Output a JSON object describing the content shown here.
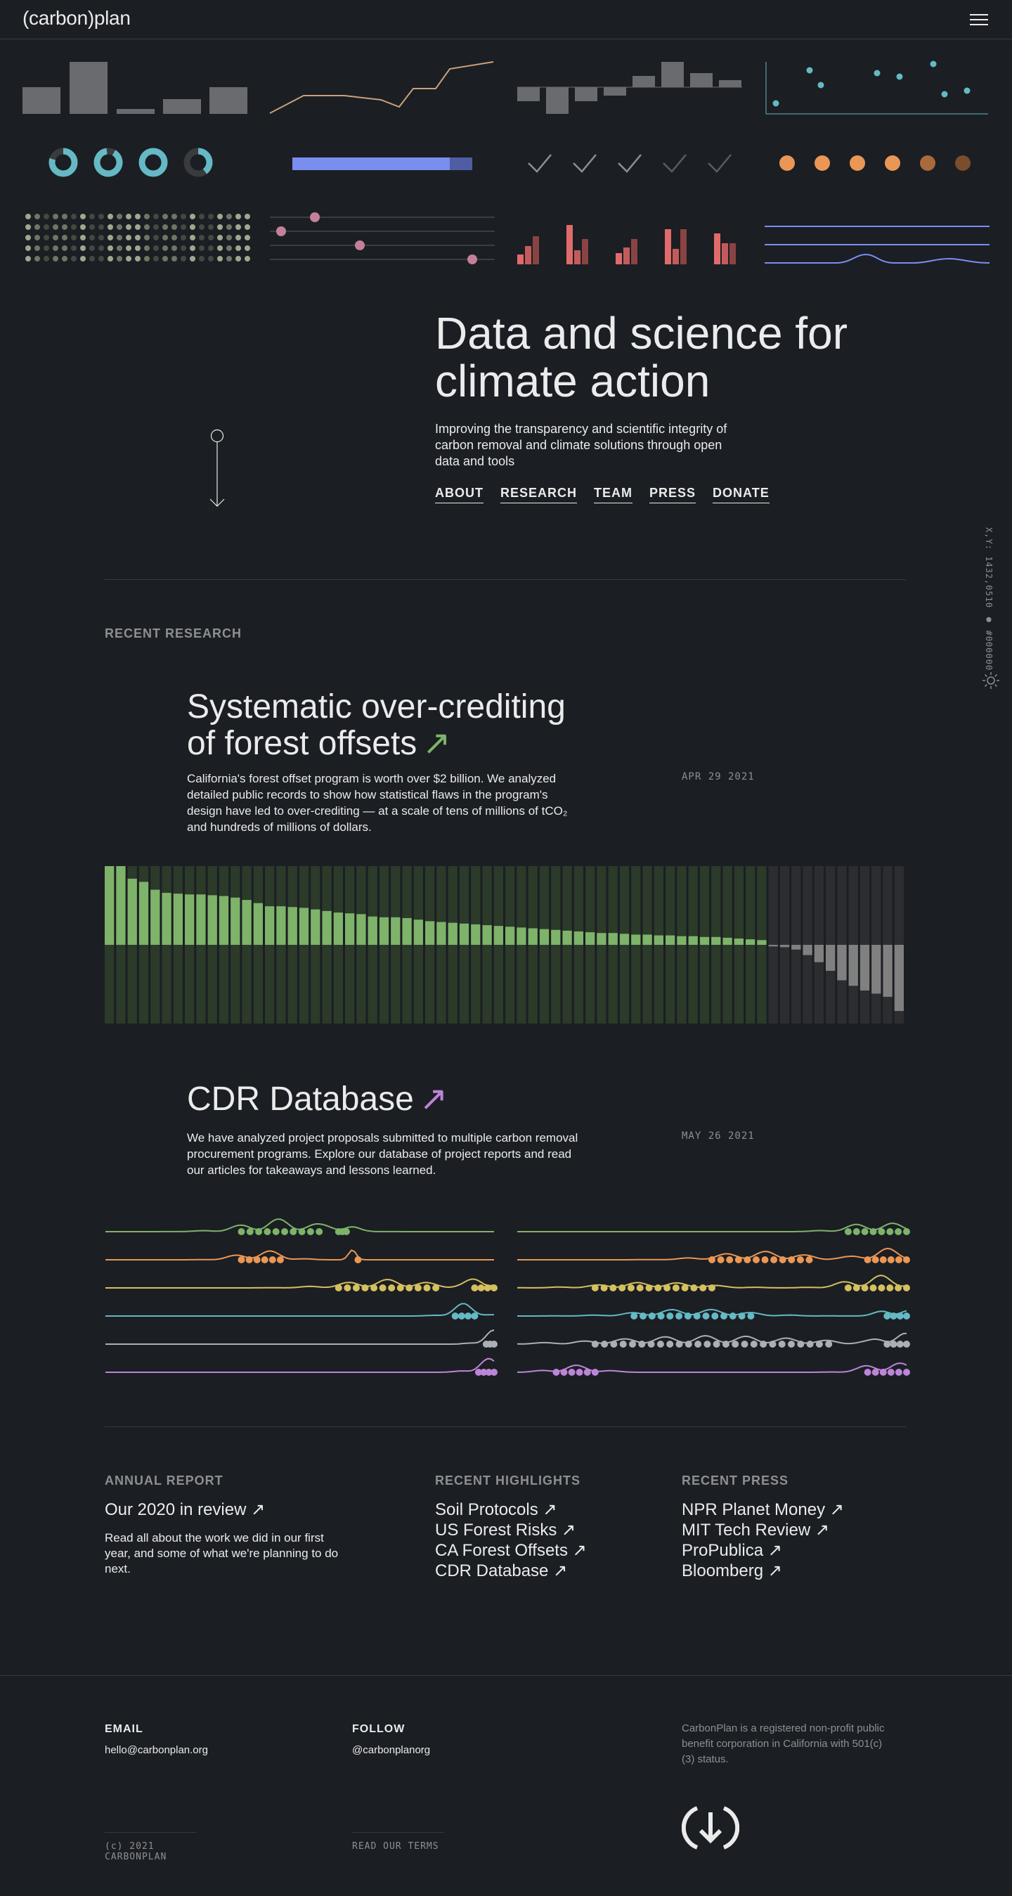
{
  "header": {
    "logo": "(carbon)plan",
    "menu_icon": "hamburger-icon"
  },
  "hero": {
    "title_line1": "Data and science for",
    "title_line2": "climate action",
    "description": "Improving the transparency and scientific integrity of carbon removal and climate solutions through open data and tools",
    "nav": [
      "ABOUT",
      "RESEARCH",
      "TEAM",
      "PRESS",
      "DONATE"
    ],
    "scroll_icon": "down-arrow-icon"
  },
  "sidebar": {
    "coords": "X,Y: 1432,0510 ● #000000",
    "theme_icon": "sun-icon"
  },
  "recent_research": {
    "label": "RECENT RESEARCH",
    "items": [
      {
        "title_line1": "Systematic over-crediting",
        "title_line2": "of forest offsets",
        "arrow": "↗",
        "arrow_color": "#7eb36a",
        "description": "California's forest offset program is worth over $2 billion. We analyzed detailed public records to show how statistical flaws in the program's design have led to over-crediting — at a scale of tens of millions of tCO₂ and hundreds of millions of dollars.",
        "date": "APR 29 2021"
      },
      {
        "title": "CDR Database",
        "arrow": "↗",
        "arrow_color": "#bc85d9",
        "description": "We have analyzed project proposals submitted to multiple carbon removal procurement programs. Explore our database of project reports and read our articles for takeaways and lessons learned.",
        "date": "MAY 26 2021"
      }
    ]
  },
  "forest_chart": {
    "values": [
      1.0,
      1.0,
      0.84,
      0.8,
      0.7,
      0.66,
      0.65,
      0.64,
      0.64,
      0.63,
      0.62,
      0.6,
      0.57,
      0.53,
      0.49,
      0.49,
      0.48,
      0.47,
      0.45,
      0.43,
      0.41,
      0.4,
      0.39,
      0.36,
      0.35,
      0.35,
      0.34,
      0.32,
      0.3,
      0.29,
      0.28,
      0.27,
      0.26,
      0.25,
      0.24,
      0.23,
      0.22,
      0.21,
      0.2,
      0.19,
      0.18,
      0.17,
      0.16,
      0.15,
      0.15,
      0.14,
      0.13,
      0.13,
      0.12,
      0.12,
      0.11,
      0.11,
      0.1,
      0.1,
      0.09,
      0.08,
      0.07,
      0.06,
      -0.02,
      -0.03,
      -0.06,
      -0.13,
      -0.22,
      -0.33,
      -0.45,
      -0.52,
      -0.58,
      -0.62,
      -0.66,
      -0.84
    ],
    "positive_color": "#7eb36a",
    "negative_color": "#808080"
  },
  "cdr_chart": {
    "colors": [
      "#7eb36a",
      "#ea9755",
      "#d4c05e",
      "#64b9c4",
      "#aab0b8",
      "#bc85d9"
    ]
  },
  "annual_report": {
    "label": "ANNUAL REPORT",
    "title": "Our 2020 in review",
    "arrow": "↗",
    "description": "Read all about the work we did in our first year, and some of what we're planning to do next."
  },
  "highlights": {
    "label": "RECENT HIGHLIGHTS",
    "items": [
      "Soil Protocols",
      "US Forest Risks",
      "CA Forest Offsets",
      "CDR Database"
    ],
    "arrow": "↗"
  },
  "press": {
    "label": "RECENT PRESS",
    "items": [
      "NPR Planet Money",
      "MIT Tech Review",
      "ProPublica",
      "Bloomberg"
    ],
    "arrow": "↗"
  },
  "footer": {
    "email_label": "EMAIL",
    "email": "hello@carbonplan.org",
    "follow_label": "FOLLOW",
    "follow": "@carbonplanorg",
    "blurb": "CarbonPlan is a registered non-profit public benefit corporation in California with 501(c)(3) status.",
    "copyright": "(c) 2021 CARBONPLAN",
    "terms": "READ OUR TERMS",
    "logo_icon": "carbonplan-circle-logo-icon"
  },
  "colors": {
    "background": "#1b1e23",
    "primary": "#ebebec",
    "secondary": "#8e8f92",
    "muted": "#393a3d"
  }
}
